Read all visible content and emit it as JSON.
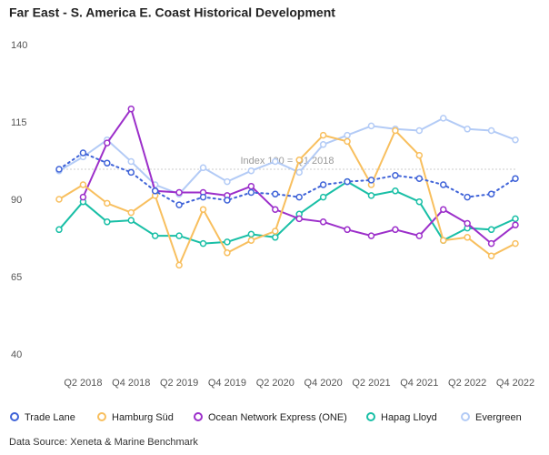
{
  "chart_data": {
    "type": "line",
    "title": "Far East - S. America E. Coast Historical Development",
    "source": "Data Source: Xeneta & Marine Benchmark",
    "annotation": "Index 100 = Q1 2018",
    "reference_line": 100,
    "categories": [
      null,
      "Q2 2018",
      null,
      "Q4 2018",
      null,
      "Q2 2019",
      null,
      "Q4 2019",
      null,
      "Q2 2020",
      null,
      "Q4 2020",
      null,
      "Q2 2021",
      null,
      "Q4 2021",
      null,
      "Q2 2022",
      null,
      "Q4 2022"
    ],
    "ylim": [
      40,
      140
    ],
    "yticks": [
      40,
      65,
      90,
      115,
      140
    ],
    "grid": false,
    "series": [
      {
        "name": "Trade Lane",
        "color": "#3f63d8",
        "dash": true,
        "values": [
          100,
          105.3,
          102,
          99,
          93,
          88.5,
          91,
          90,
          92.5,
          92,
          91,
          95,
          96,
          96.5,
          98,
          97,
          95,
          91,
          92,
          97
        ]
      },
      {
        "name": "Hamburg Süd",
        "color": "#f8bf5e",
        "values": [
          90.3,
          95,
          89,
          86,
          91.5,
          69,
          87,
          73,
          77,
          80,
          103,
          111,
          109,
          95,
          112.5,
          104.5,
          77,
          78,
          72,
          76
        ]
      },
      {
        "name": "Ocean Network Express (ONE)",
        "color": "#9c2fca",
        "values": [
          null,
          91,
          108.5,
          119.5,
          93,
          92.5,
          92.5,
          91.5,
          94.5,
          87,
          84,
          83,
          80.5,
          78.5,
          80.5,
          78.5,
          87,
          82.5,
          76,
          82
        ]
      },
      {
        "name": "Hapag Lloyd",
        "color": "#19bfa6",
        "values": [
          80.5,
          89.5,
          83,
          83.5,
          78.5,
          78.5,
          76,
          76.5,
          79,
          78,
          85.5,
          91,
          96,
          91.5,
          93,
          89.5,
          77,
          81,
          80.5,
          84
        ]
      },
      {
        "name": "Evergreen",
        "color": "#b3cbf6",
        "values": [
          99.5,
          104,
          109.5,
          102.5,
          95,
          92,
          100.5,
          96,
          99.5,
          102.5,
          99,
          108,
          111,
          114,
          113,
          112.5,
          116.5,
          113,
          112.5,
          109.5
        ]
      }
    ]
  }
}
